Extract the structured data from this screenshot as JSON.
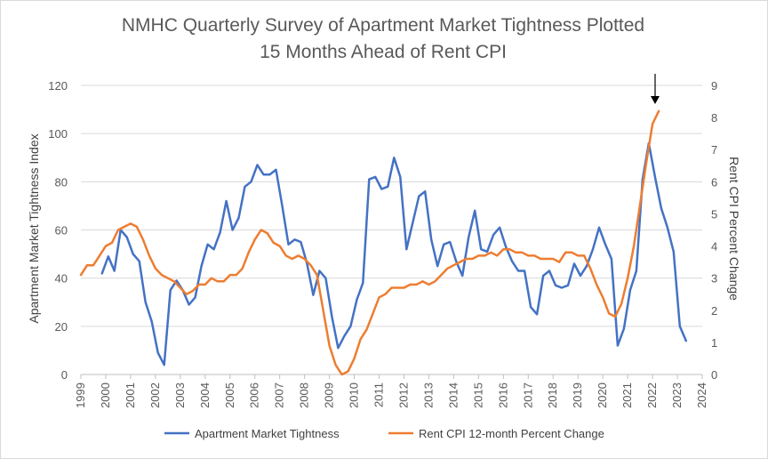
{
  "chart_data": {
    "type": "line",
    "title_line1": "NMHC Quarterly Survey of Apartment Market Tightness Plotted",
    "title_line2": "15 Months Ahead of Rent CPI",
    "ylabel_left": "Apartment Market Tightness Index",
    "ylabel_right": "Rent CPI Percent Change",
    "xlim": [
      1999,
      2024
    ],
    "ylim_left": [
      0,
      120
    ],
    "ylim_right": [
      0,
      9
    ],
    "x_ticks": [
      "1999",
      "2000",
      "2001",
      "2002",
      "2003",
      "2004",
      "2005",
      "2006",
      "2007",
      "2008",
      "2009",
      "2010",
      "2011",
      "2012",
      "2013",
      "2014",
      "2015",
      "2016",
      "2017",
      "2018",
      "2019",
      "2020",
      "2021",
      "2022",
      "2023",
      "2024"
    ],
    "y_ticks_left": [
      "0",
      "20",
      "40",
      "60",
      "80",
      "100",
      "120"
    ],
    "y_ticks_right": [
      "0",
      "1",
      "2",
      "3",
      "4",
      "5",
      "6",
      "7",
      "8",
      "9"
    ],
    "legend_position": "bottom",
    "grid": "horizontal",
    "annotation": "down-arrow marker above peak at early 2022",
    "colors": {
      "tightness": "#4472c4",
      "rent_cpi": "#ed7d31",
      "grid": "#d9d9d9",
      "text": "#595959"
    },
    "series": [
      {
        "name": "Apartment Market Tightness",
        "axis": "left",
        "x": [
          1999.85,
          2000.1,
          2000.35,
          2000.6,
          2000.85,
          2001.1,
          2001.35,
          2001.6,
          2001.85,
          2002.1,
          2002.35,
          2002.6,
          2002.85,
          2003.1,
          2003.35,
          2003.6,
          2003.85,
          2004.1,
          2004.35,
          2004.6,
          2004.85,
          2005.1,
          2005.35,
          2005.6,
          2005.85,
          2006.1,
          2006.35,
          2006.6,
          2006.85,
          2007.1,
          2007.35,
          2007.6,
          2007.85,
          2008.1,
          2008.35,
          2008.6,
          2008.85,
          2009.1,
          2009.35,
          2009.6,
          2009.85,
          2010.1,
          2010.35,
          2010.6,
          2010.85,
          2011.1,
          2011.35,
          2011.6,
          2011.85,
          2012.1,
          2012.35,
          2012.6,
          2012.85,
          2013.1,
          2013.35,
          2013.6,
          2013.85,
          2014.1,
          2014.35,
          2014.6,
          2014.85,
          2015.1,
          2015.35,
          2015.6,
          2015.85,
          2016.1,
          2016.35,
          2016.6,
          2016.85,
          2017.1,
          2017.35,
          2017.6,
          2017.85,
          2018.1,
          2018.35,
          2018.6,
          2018.85,
          2019.1,
          2019.35,
          2019.6,
          2019.85,
          2020.1,
          2020.35,
          2020.6,
          2020.85,
          2021.1,
          2021.35,
          2021.6,
          2021.85,
          2022.1,
          2022.35,
          2022.6,
          2022.85,
          2023.1,
          2023.35
        ],
        "values": [
          42,
          49,
          43,
          60,
          57,
          50,
          47,
          30,
          22,
          9,
          4,
          35,
          39,
          35,
          29,
          32,
          45,
          54,
          52,
          59,
          72,
          60,
          65,
          78,
          80,
          87,
          83,
          83,
          85,
          70,
          54,
          56,
          55,
          46,
          33,
          43,
          40,
          24,
          11,
          16,
          20,
          31,
          38,
          81,
          82,
          77,
          78,
          90,
          82,
          52,
          63,
          74,
          76,
          56,
          45,
          54,
          55,
          47,
          41,
          57,
          68,
          52,
          51,
          58,
          61,
          53,
          47,
          43,
          43,
          28,
          25,
          41,
          43,
          37,
          36,
          37,
          46,
          41,
          45,
          52,
          61,
          54,
          48,
          12,
          19,
          35,
          43,
          81,
          96,
          82,
          69,
          61,
          51,
          20,
          14
        ]
      },
      {
        "name": "Rent CPI 12-month Percent Change",
        "axis": "right",
        "x": [
          1999.0,
          1999.25,
          1999.5,
          1999.75,
          2000.0,
          2000.25,
          2000.5,
          2000.75,
          2001.0,
          2001.25,
          2001.5,
          2001.75,
          2002.0,
          2002.25,
          2002.5,
          2002.75,
          2003.0,
          2003.25,
          2003.5,
          2003.75,
          2004.0,
          2004.25,
          2004.5,
          2004.75,
          2005.0,
          2005.25,
          2005.5,
          2005.75,
          2006.0,
          2006.25,
          2006.5,
          2006.75,
          2007.0,
          2007.25,
          2007.5,
          2007.75,
          2008.0,
          2008.25,
          2008.5,
          2008.75,
          2009.0,
          2009.25,
          2009.5,
          2009.75,
          2010.0,
          2010.25,
          2010.5,
          2010.75,
          2011.0,
          2011.25,
          2011.5,
          2011.75,
          2012.0,
          2012.25,
          2012.5,
          2012.75,
          2013.0,
          2013.25,
          2013.5,
          2013.75,
          2014.0,
          2014.25,
          2014.5,
          2014.75,
          2015.0,
          2015.25,
          2015.5,
          2015.75,
          2016.0,
          2016.25,
          2016.5,
          2016.75,
          2017.0,
          2017.25,
          2017.5,
          2017.75,
          2018.0,
          2018.25,
          2018.5,
          2018.75,
          2019.0,
          2019.25,
          2019.5,
          2019.75,
          2020.0,
          2020.25,
          2020.5,
          2020.75,
          2021.0,
          2021.25,
          2021.5,
          2021.75,
          2022.0,
          2022.25
        ],
        "values": [
          3.1,
          3.4,
          3.4,
          3.7,
          4.0,
          4.1,
          4.5,
          4.6,
          4.7,
          4.6,
          4.2,
          3.7,
          3.3,
          3.1,
          3.0,
          2.9,
          2.7,
          2.5,
          2.6,
          2.8,
          2.8,
          3.0,
          2.9,
          2.9,
          3.1,
          3.1,
          3.3,
          3.8,
          4.2,
          4.5,
          4.4,
          4.1,
          4.0,
          3.7,
          3.6,
          3.7,
          3.6,
          3.4,
          3.1,
          2.0,
          0.9,
          0.3,
          0.0,
          0.1,
          0.5,
          1.1,
          1.4,
          1.9,
          2.4,
          2.5,
          2.7,
          2.7,
          2.7,
          2.8,
          2.8,
          2.9,
          2.8,
          2.9,
          3.1,
          3.3,
          3.4,
          3.5,
          3.6,
          3.6,
          3.7,
          3.7,
          3.8,
          3.7,
          3.9,
          3.9,
          3.8,
          3.8,
          3.7,
          3.7,
          3.6,
          3.6,
          3.6,
          3.5,
          3.8,
          3.8,
          3.7,
          3.7,
          3.3,
          2.8,
          2.4,
          1.9,
          1.8,
          2.2,
          3.0,
          4.0,
          5.3,
          6.6,
          7.8,
          8.2
        ]
      }
    ]
  }
}
